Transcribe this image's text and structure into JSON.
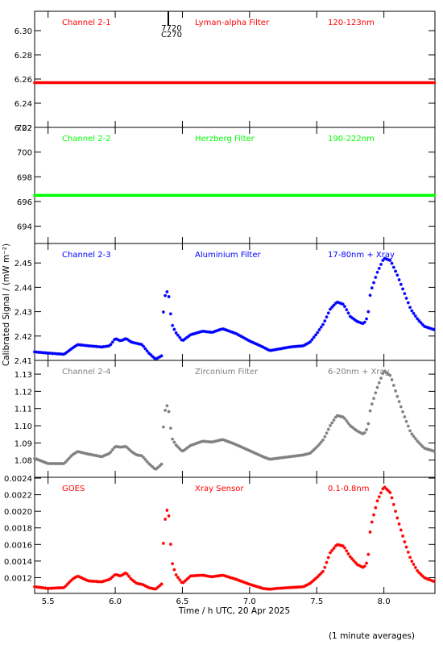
{
  "figure": {
    "ylabel": "Calibrated Signal / (mW m⁻²)",
    "xlabel": "Time / h UTC, 20 Apr 2025",
    "note": "(1 minute averages)",
    "marker_label_top": "7720",
    "marker_label_bottom": "C270"
  },
  "chart_data": [
    {
      "type": "scatter",
      "channel": "Channel 2-1",
      "filter": "Lyman-alpha Filter",
      "band": "120-123nm",
      "color": "#ff0000",
      "xlim": [
        5.4,
        8.38
      ],
      "ylim": [
        6.22,
        6.316
      ],
      "yticks": [
        "6.22",
        "6.24",
        "6.26",
        "6.28",
        "6.30"
      ],
      "series": [
        {
          "values": [
            [
              5.4,
              6.257
            ],
            [
              8.38,
              6.257
            ]
          ]
        }
      ]
    },
    {
      "type": "scatter",
      "channel": "Channel 2-2",
      "filter": "Herzberg Filter",
      "band": "190-222nm",
      "color": "#00ff00",
      "xlim": [
        5.4,
        8.38
      ],
      "ylim": [
        692.6,
        702.0
      ],
      "yticks": [
        "694",
        "696",
        "698",
        "700",
        "702"
      ],
      "series": [
        {
          "values": [
            [
              5.4,
              696.5
            ],
            [
              8.38,
              696.5
            ]
          ]
        }
      ]
    },
    {
      "type": "scatter",
      "channel": "Channel 2-3",
      "filter": "Aluminium Filter",
      "band": "17-80nm + Xray",
      "color": "#0000ff",
      "xlim": [
        5.4,
        8.38
      ],
      "ylim": [
        2.41,
        2.458
      ],
      "yticks": [
        "2.41",
        "2.42",
        "2.43",
        "2.44",
        "2.45"
      ],
      "series": [
        {
          "values": [
            [
              5.4,
              2.4135
            ],
            [
              5.5,
              2.413
            ],
            [
              5.62,
              2.4125
            ],
            [
              5.68,
              2.415
            ],
            [
              5.72,
              2.4165
            ],
            [
              5.8,
              2.416
            ],
            [
              5.9,
              2.4155
            ],
            [
              5.96,
              2.416
            ],
            [
              6.0,
              2.419
            ],
            [
              6.04,
              2.418
            ],
            [
              6.08,
              2.419
            ],
            [
              6.12,
              2.4175
            ],
            [
              6.16,
              2.417
            ],
            [
              6.2,
              2.4165
            ],
            [
              6.25,
              2.413
            ],
            [
              6.3,
              2.4105
            ],
            [
              6.35,
              2.412
            ],
            [
              6.36,
              2.433
            ],
            [
              6.38,
              2.439
            ],
            [
              6.4,
              2.436
            ],
            [
              6.42,
              2.425
            ],
            [
              6.45,
              2.4215
            ],
            [
              6.5,
              2.418
            ],
            [
              6.56,
              2.4205
            ],
            [
              6.65,
              2.422
            ],
            [
              6.72,
              2.4215
            ],
            [
              6.8,
              2.423
            ],
            [
              6.9,
              2.421
            ],
            [
              7.0,
              2.418
            ],
            [
              7.1,
              2.4155
            ],
            [
              7.15,
              2.414
            ],
            [
              7.2,
              2.4145
            ],
            [
              7.3,
              2.4155
            ],
            [
              7.4,
              2.416
            ],
            [
              7.45,
              2.4175
            ],
            [
              7.5,
              2.421
            ],
            [
              7.55,
              2.425
            ],
            [
              7.6,
              2.431
            ],
            [
              7.65,
              2.434
            ],
            [
              7.7,
              2.433
            ],
            [
              7.75,
              2.428
            ],
            [
              7.8,
              2.426
            ],
            [
              7.85,
              2.425
            ],
            [
              7.88,
              2.428
            ],
            [
              7.9,
              2.438
            ],
            [
              7.95,
              2.446
            ],
            [
              8.0,
              2.452
            ],
            [
              8.05,
              2.451
            ],
            [
              8.1,
              2.445
            ],
            [
              8.15,
              2.438
            ],
            [
              8.2,
              2.431
            ],
            [
              8.25,
              2.427
            ],
            [
              8.3,
              2.424
            ],
            [
              8.38,
              2.4225
            ]
          ]
        }
      ]
    },
    {
      "type": "scatter",
      "channel": "Channel 2-4",
      "filter": "Zirconium Filter",
      "band": "6-20nm + Xray",
      "color": "#808080",
      "xlim": [
        5.4,
        8.38
      ],
      "ylim": [
        1.07,
        1.138
      ],
      "yticks": [
        "1.08",
        "1.09",
        "1.10",
        "1.11",
        "1.12",
        "1.13"
      ],
      "series": [
        {
          "values": [
            [
              5.4,
              1.081
            ],
            [
              5.5,
              1.078
            ],
            [
              5.62,
              1.078
            ],
            [
              5.68,
              1.083
            ],
            [
              5.72,
              1.085
            ],
            [
              5.8,
              1.0835
            ],
            [
              5.9,
              1.082
            ],
            [
              5.96,
              1.084
            ],
            [
              6.0,
              1.088
            ],
            [
              6.04,
              1.0875
            ],
            [
              6.08,
              1.088
            ],
            [
              6.12,
              1.085
            ],
            [
              6.16,
              1.083
            ],
            [
              6.2,
              1.0825
            ],
            [
              6.25,
              1.078
            ],
            [
              6.3,
              1.0745
            ],
            [
              6.35,
              1.078
            ],
            [
              6.36,
              1.103
            ],
            [
              6.38,
              1.113
            ],
            [
              6.4,
              1.108
            ],
            [
              6.42,
              1.093
            ],
            [
              6.45,
              1.089
            ],
            [
              6.5,
              1.085
            ],
            [
              6.56,
              1.0885
            ],
            [
              6.65,
              1.091
            ],
            [
              6.72,
              1.0905
            ],
            [
              6.8,
              1.092
            ],
            [
              6.9,
              1.089
            ],
            [
              7.0,
              1.0855
            ],
            [
              7.1,
              1.082
            ],
            [
              7.15,
              1.0805
            ],
            [
              7.2,
              1.081
            ],
            [
              7.3,
              1.082
            ],
            [
              7.4,
              1.083
            ],
            [
              7.45,
              1.084
            ],
            [
              7.5,
              1.0875
            ],
            [
              7.55,
              1.092
            ],
            [
              7.6,
              1.1
            ],
            [
              7.65,
              1.106
            ],
            [
              7.7,
              1.105
            ],
            [
              7.75,
              1.1
            ],
            [
              7.8,
              1.097
            ],
            [
              7.85,
              1.095
            ],
            [
              7.88,
              1.099
            ],
            [
              7.9,
              1.11
            ],
            [
              7.95,
              1.122
            ],
            [
              8.0,
              1.132
            ],
            [
              8.05,
              1.129
            ],
            [
              8.1,
              1.117
            ],
            [
              8.15,
              1.106
            ],
            [
              8.2,
              1.096
            ],
            [
              8.25,
              1.091
            ],
            [
              8.3,
              1.087
            ],
            [
              8.38,
              1.085
            ]
          ]
        }
      ]
    },
    {
      "type": "scatter",
      "channel": "GOES",
      "filter": "Xray Sensor",
      "band": "0.1-0.8nm",
      "color": "#ff0000",
      "xlim": [
        5.4,
        8.38
      ],
      "ylim": [
        0.00101,
        0.00241
      ],
      "yticks": [
        "0.0012",
        "0.0014",
        "0.0016",
        "0.0018",
        "0.0020",
        "0.0022",
        "0.0024"
      ],
      "series": [
        {
          "values": [
            [
              5.4,
              0.00109
            ],
            [
              5.5,
              0.00107
            ],
            [
              5.62,
              0.00108
            ],
            [
              5.68,
              0.00118
            ],
            [
              5.72,
              0.00122
            ],
            [
              5.8,
              0.00116
            ],
            [
              5.9,
              0.00115
            ],
            [
              5.96,
              0.00118
            ],
            [
              6.0,
              0.00124
            ],
            [
              6.04,
              0.00122
            ],
            [
              6.08,
              0.00126
            ],
            [
              6.12,
              0.00118
            ],
            [
              6.16,
              0.00113
            ],
            [
              6.2,
              0.00112
            ],
            [
              6.25,
              0.00108
            ],
            [
              6.3,
              0.00106
            ],
            [
              6.35,
              0.00113
            ],
            [
              6.36,
              0.0017
            ],
            [
              6.38,
              0.00204
            ],
            [
              6.4,
              0.00194
            ],
            [
              6.42,
              0.0014
            ],
            [
              6.45,
              0.00124
            ],
            [
              6.5,
              0.00113
            ],
            [
              6.56,
              0.00122
            ],
            [
              6.65,
              0.00123
            ],
            [
              6.72,
              0.00121
            ],
            [
              6.8,
              0.00123
            ],
            [
              6.9,
              0.00118
            ],
            [
              7.0,
              0.00112
            ],
            [
              7.1,
              0.00107
            ],
            [
              7.15,
              0.00106
            ],
            [
              7.2,
              0.00107
            ],
            [
              7.3,
              0.00108
            ],
            [
              7.4,
              0.00109
            ],
            [
              7.45,
              0.00113
            ],
            [
              7.5,
              0.0012
            ],
            [
              7.55,
              0.00128
            ],
            [
              7.6,
              0.0015
            ],
            [
              7.65,
              0.0016
            ],
            [
              7.7,
              0.00158
            ],
            [
              7.75,
              0.00145
            ],
            [
              7.8,
              0.00136
            ],
            [
              7.85,
              0.00132
            ],
            [
              7.88,
              0.0014
            ],
            [
              7.9,
              0.0018
            ],
            [
              7.95,
              0.00212
            ],
            [
              8.0,
              0.0023
            ],
            [
              8.05,
              0.00222
            ],
            [
              8.1,
              0.00192
            ],
            [
              8.15,
              0.00165
            ],
            [
              8.2,
              0.00142
            ],
            [
              8.25,
              0.00128
            ],
            [
              8.3,
              0.0012
            ],
            [
              8.38,
              0.00115
            ]
          ]
        }
      ]
    }
  ],
  "xaxis": {
    "xlim": [
      5.4,
      8.38
    ],
    "ticks": [
      "5.5",
      "6.0",
      "6.5",
      "7.0",
      "7.5",
      "8.0"
    ]
  }
}
